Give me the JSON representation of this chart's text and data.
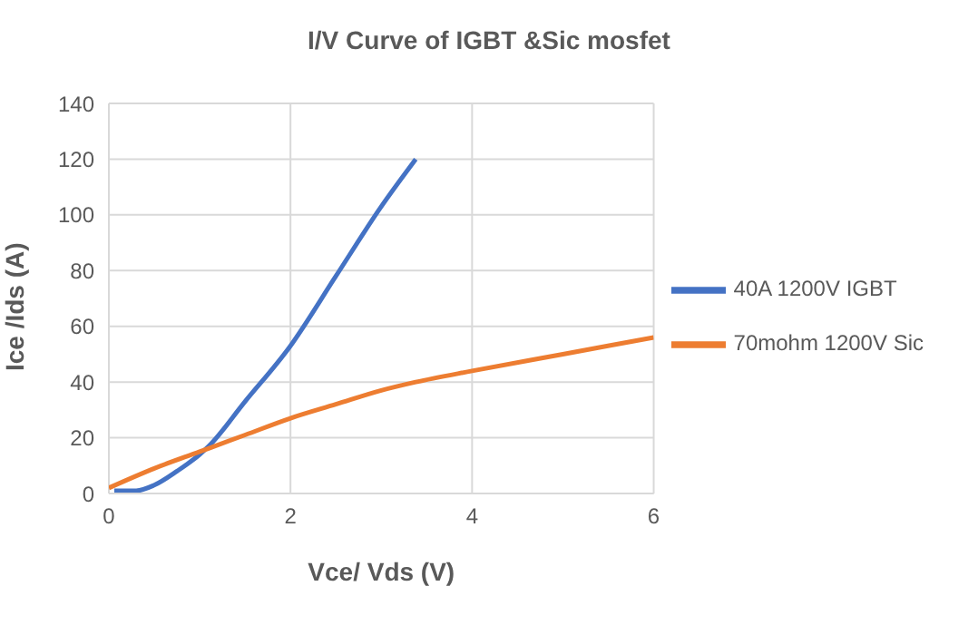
{
  "chart_data": {
    "type": "line",
    "title": "I/V Curve of IGBT &Sic mosfet",
    "xlabel": "Vce/ Vds (V)",
    "ylabel": "Ice /Ids (A)",
    "series": [
      {
        "name": "40A 1200V IGBT",
        "color": "#4472c4",
        "x": [
          0.06,
          0.3,
          0.5,
          0.75,
          1,
          1.1,
          1.5,
          2,
          2.5,
          3,
          3.38
        ],
        "values": [
          1,
          1,
          3,
          8,
          14,
          17,
          33,
          53,
          78,
          103,
          120
        ]
      },
      {
        "name": "70mohm 1200V Sic",
        "color": "#ed7d31",
        "x": [
          0,
          0.5,
          1,
          1.5,
          2,
          2.5,
          3,
          3.38,
          4,
          5,
          6
        ],
        "values": [
          2,
          9,
          15,
          21,
          27,
          32,
          37,
          40,
          44,
          50,
          56
        ]
      }
    ],
    "xlim": [
      0,
      6
    ],
    "xticks": [
      0,
      2,
      4,
      6
    ],
    "ylim": [
      0,
      140
    ],
    "yticks": [
      0,
      20,
      40,
      60,
      80,
      100,
      120,
      140
    ],
    "grid": true,
    "legend": "right",
    "marker": "none",
    "line_style": "solid"
  }
}
